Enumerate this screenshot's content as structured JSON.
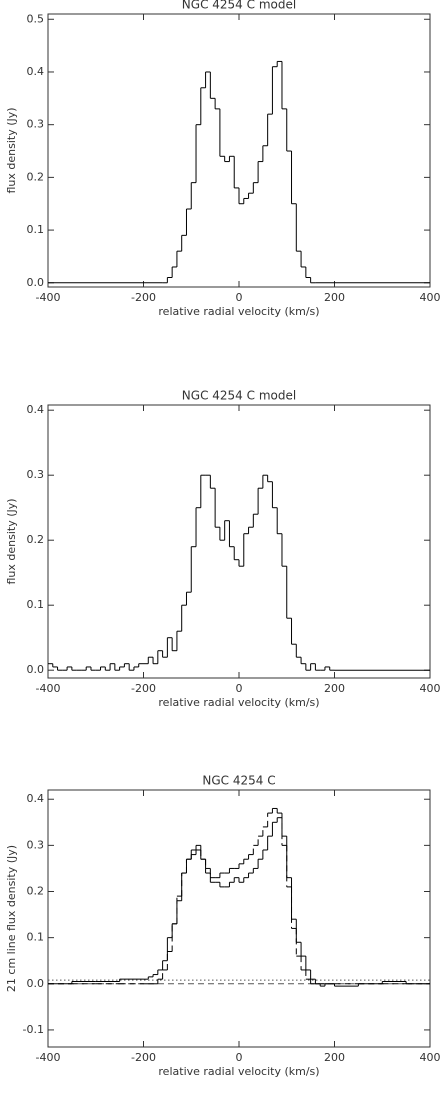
{
  "chart_data": [
    {
      "type": "histogram",
      "title": "NGC 4254 C model",
      "xlabel": "relative radial velocity (km/s)",
      "ylabel": "flux density (Jy)",
      "xlim": [
        -400,
        400
      ],
      "xticks": [
        -400,
        -200,
        0,
        200,
        400
      ],
      "ylim": [
        -0.008,
        0.51
      ],
      "yticks": [
        {
          "value": 0,
          "label": "0.0"
        },
        0.1,
        0.2,
        0.3,
        0.4,
        0.5
      ],
      "series": [
        {
          "color": "#000000",
          "style": "solid",
          "bins": [
            -400,
            -160,
            -150,
            -140,
            -130,
            -120,
            -110,
            -100,
            -90,
            -80,
            -70,
            -60,
            -50,
            -40,
            -30,
            -20,
            -10,
            0,
            10,
            20,
            30,
            40,
            50,
            60,
            70,
            80,
            90,
            100,
            110,
            120,
            130,
            140,
            150,
            160,
            400
          ],
          "values": [
            0,
            0.0,
            0.01,
            0.03,
            0.06,
            0.09,
            0.14,
            0.19,
            0.3,
            0.37,
            0.4,
            0.35,
            0.33,
            0.24,
            0.23,
            0.24,
            0.18,
            0.15,
            0.16,
            0.17,
            0.19,
            0.23,
            0.26,
            0.32,
            0.41,
            0.42,
            0.33,
            0.25,
            0.15,
            0.06,
            0.03,
            0.01,
            0.0,
            0
          ]
        }
      ]
    },
    {
      "type": "histogram",
      "title": "NGC 4254 C model",
      "xlabel": "relative radial velocity (km/s)",
      "ylabel": "flux density (Jy)",
      "xlim": [
        -400,
        400
      ],
      "xticks": [
        -400,
        -200,
        0,
        200,
        400
      ],
      "ylim": [
        -0.012,
        0.408
      ],
      "yticks": [
        {
          "value": 0,
          "label": "0.0"
        },
        0.1,
        0.2,
        0.3,
        0.4
      ],
      "series": [
        {
          "color": "#000000",
          "style": "solid",
          "bins": [
            -400,
            -390,
            -380,
            -370,
            -360,
            -350,
            -340,
            -330,
            -320,
            -310,
            -300,
            -290,
            -280,
            -270,
            -260,
            -250,
            -240,
            -230,
            -220,
            -210,
            -200,
            -190,
            -180,
            -170,
            -160,
            -150,
            -140,
            -130,
            -120,
            -110,
            -100,
            -90,
            -80,
            -70,
            -60,
            -50,
            -40,
            -30,
            -20,
            -10,
            0,
            10,
            20,
            30,
            40,
            50,
            60,
            70,
            80,
            90,
            100,
            110,
            120,
            130,
            140,
            150,
            160,
            170,
            180,
            190,
            200,
            400
          ],
          "values": [
            0.01,
            0.005,
            0.0,
            0.0,
            0.005,
            0.0,
            0.0,
            0.0,
            0.005,
            0.0,
            0.0,
            0.005,
            0.0,
            0.01,
            0.0,
            0.005,
            0.01,
            0.0,
            0.005,
            0.01,
            0.01,
            0.02,
            0.01,
            0.03,
            0.02,
            0.05,
            0.03,
            0.06,
            0.1,
            0.12,
            0.19,
            0.25,
            0.3,
            0.3,
            0.28,
            0.22,
            0.2,
            0.23,
            0.19,
            0.17,
            0.16,
            0.21,
            0.22,
            0.24,
            0.28,
            0.3,
            0.29,
            0.25,
            0.21,
            0.16,
            0.08,
            0.04,
            0.02,
            0.01,
            0.0,
            0.01,
            0.0,
            0.0,
            0.005,
            0.0,
            0
          ]
        }
      ]
    },
    {
      "type": "histogram",
      "title": "NGC 4254 C",
      "xlabel": "relative radial velocity (km/s)",
      "ylabel": "21 cm line flux density (Jy)",
      "xlim": [
        -400,
        400
      ],
      "xticks": [
        -400,
        -200,
        0,
        200,
        400
      ],
      "ylim": [
        -0.137,
        0.42
      ],
      "yticks": [
        -0.1,
        {
          "value": 0,
          "label": "0.0"
        },
        0.1,
        0.2,
        0.3,
        0.4
      ],
      "hlines": [
        {
          "value": 0.008,
          "style": "dotted"
        },
        {
          "value": 0,
          "style": "dashed"
        }
      ],
      "series": [
        {
          "color": "#000000",
          "style": "solid",
          "bins": [
            -400,
            -350,
            -300,
            -250,
            -200,
            -190,
            -180,
            -170,
            -160,
            -150,
            -140,
            -130,
            -120,
            -110,
            -100,
            -90,
            -80,
            -70,
            -60,
            -50,
            -40,
            -30,
            -20,
            -10,
            0,
            10,
            20,
            30,
            40,
            50,
            60,
            70,
            80,
            90,
            100,
            110,
            120,
            130,
            140,
            150,
            160,
            170,
            180,
            190,
            200,
            250,
            300,
            350,
            400
          ],
          "values": [
            0.0,
            0.005,
            0.005,
            0.01,
            0.01,
            0.015,
            0.02,
            0.03,
            0.05,
            0.1,
            0.13,
            0.18,
            0.24,
            0.27,
            0.29,
            0.3,
            0.27,
            0.24,
            0.22,
            0.22,
            0.21,
            0.21,
            0.22,
            0.23,
            0.22,
            0.23,
            0.24,
            0.25,
            0.27,
            0.29,
            0.32,
            0.35,
            0.36,
            0.32,
            0.23,
            0.14,
            0.09,
            0.06,
            0.03,
            0.01,
            0.0,
            -0.005,
            0.0,
            0.0,
            -0.005,
            0.0,
            0.005,
            0.0
          ]
        },
        {
          "color": "#000000",
          "style": "dashed",
          "bins": [
            -400,
            -350,
            -300,
            -250,
            -200,
            -190,
            -180,
            -170,
            -160,
            -150,
            -140,
            -130,
            -120,
            -110,
            -100,
            -90,
            -80,
            -70,
            -60,
            -50,
            -40,
            -30,
            -20,
            -10,
            0,
            10,
            20,
            30,
            40,
            50,
            60,
            70,
            80,
            90,
            100,
            110,
            120,
            130,
            140,
            150,
            160,
            170,
            180,
            190,
            200,
            250,
            300,
            350,
            400
          ],
          "values": [
            0,
            0,
            0,
            0,
            0,
            0,
            0,
            0.01,
            0.03,
            0.07,
            0.13,
            0.19,
            0.24,
            0.27,
            0.28,
            0.29,
            0.27,
            0.25,
            0.23,
            0.23,
            0.24,
            0.24,
            0.25,
            0.25,
            0.26,
            0.27,
            0.28,
            0.3,
            0.32,
            0.34,
            0.37,
            0.38,
            0.37,
            0.3,
            0.21,
            0.12,
            0.06,
            0.03,
            0.01,
            0,
            0,
            0,
            0,
            0,
            0,
            0,
            0,
            0
          ]
        }
      ]
    }
  ]
}
